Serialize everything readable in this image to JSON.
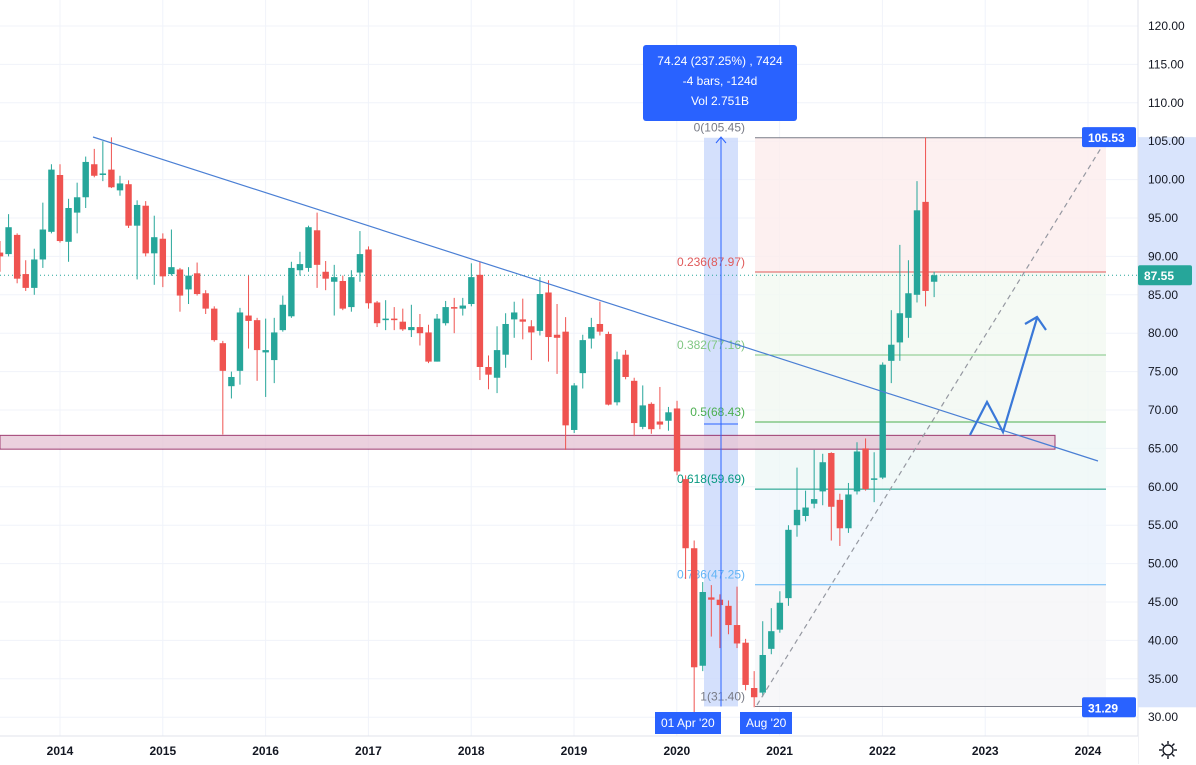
{
  "chart_data": {
    "type": "candlestick",
    "interval": "1M",
    "ylim": [
      28,
      122
    ],
    "y_ticks": [
      120,
      115,
      110,
      105,
      100,
      95,
      90,
      85,
      80,
      75,
      70,
      65,
      60,
      55,
      50,
      45,
      40,
      35,
      30
    ],
    "y_tick_labels": [
      "120.00",
      "115.00",
      "110.00",
      "105.00",
      "100.00",
      "95.00",
      "90.00",
      "85.00",
      "80.00",
      "75.00",
      "70.00",
      "65.00",
      "60.00",
      "55.00",
      "50.00",
      "45.00",
      "40.00",
      "35.00",
      "30.00"
    ],
    "x_ticks": [
      "2014",
      "2015",
      "2016",
      "2017",
      "2018",
      "2019",
      "2020",
      "2021",
      "2022",
      "2023",
      "2024"
    ],
    "first_month": "2013-06",
    "ohlc": [
      [
        90.5,
        92,
        88,
        90
      ],
      [
        90.3,
        95.5,
        90,
        93.8
      ],
      [
        92.8,
        93,
        86.5,
        87.1
      ],
      [
        87.7,
        89.5,
        85.5,
        85.9
      ],
      [
        85.9,
        91,
        85,
        89.6
      ],
      [
        89.6,
        97,
        88.5,
        93.5
      ],
      [
        93.2,
        102,
        93,
        101.3
      ],
      [
        100.6,
        102,
        91.8,
        92
      ],
      [
        91.9,
        97.5,
        89.3,
        96.3
      ],
      [
        95.7,
        99.6,
        93,
        97.7
      ],
      [
        97.7,
        103,
        96.3,
        102.3
      ],
      [
        102,
        104,
        100.3,
        100.5
      ],
      [
        100.6,
        105,
        99.8,
        100.8
      ],
      [
        101.3,
        105.5,
        98.9,
        99
      ],
      [
        98.6,
        100.5,
        97.9,
        99.5
      ],
      [
        99.4,
        99.9,
        93.7,
        94
      ],
      [
        94,
        97.3,
        87,
        96.7
      ],
      [
        96.6,
        97.2,
        90,
        90.4
      ],
      [
        90.4,
        95.3,
        86.3,
        92.5
      ],
      [
        92.3,
        93,
        86,
        87.4
      ],
      [
        87.7,
        93.5,
        87.5,
        88.6
      ],
      [
        88.3,
        88.5,
        82.8,
        84.9
      ],
      [
        85.7,
        88.6,
        83.8,
        87.5
      ],
      [
        87.8,
        89.2,
        84.9,
        85.1
      ],
      [
        85.2,
        85.6,
        82.5,
        83.2
      ],
      [
        83.2,
        83.5,
        78.9,
        79.1
      ],
      [
        78.7,
        79,
        66.8,
        75.1
      ],
      [
        73.1,
        75,
        71.5,
        74.3
      ],
      [
        75.1,
        83.3,
        73.3,
        82.7
      ],
      [
        82.3,
        87.5,
        78,
        81.6
      ],
      [
        81.7,
        82,
        73.8,
        77.8
      ],
      [
        77.5,
        81.9,
        71.7,
        77.8
      ],
      [
        76.5,
        82,
        73.5,
        80.1
      ],
      [
        80.4,
        84.9,
        80.2,
        83.7
      ],
      [
        82.2,
        89.3,
        82,
        88.5
      ],
      [
        88.2,
        90.6,
        87.5,
        89
      ],
      [
        88.5,
        94,
        88,
        93.8
      ],
      [
        93.4,
        95.7,
        85.9,
        88.9
      ],
      [
        88,
        89.4,
        85.6,
        87.1
      ],
      [
        86.7,
        88.9,
        82.3,
        87.3
      ],
      [
        86.8,
        87.5,
        83,
        83.2
      ],
      [
        83.4,
        88.2,
        82.8,
        87.3
      ],
      [
        87.9,
        93.3,
        86.7,
        90.3
      ],
      [
        90.9,
        91.3,
        83.2,
        83.9
      ],
      [
        84,
        84.2,
        80.8,
        81.3
      ],
      [
        81.7,
        84.3,
        80.4,
        81.9
      ],
      [
        81.9,
        83.4,
        80.4,
        81.7
      ],
      [
        81.5,
        83.2,
        80.3,
        80.5
      ],
      [
        80.4,
        83.7,
        79.5,
        80.8
      ],
      [
        80.8,
        82.5,
        78.4,
        80
      ],
      [
        80.1,
        81.1,
        76.1,
        76.3
      ],
      [
        76.3,
        82.5,
        76.3,
        81.9
      ],
      [
        81.3,
        84.2,
        81,
        83.4
      ],
      [
        83.4,
        84.6,
        80,
        83.2
      ],
      [
        83.2,
        84.6,
        82.3,
        83.6
      ],
      [
        83.8,
        89.1,
        83.5,
        87.3
      ],
      [
        87.6,
        89.3,
        73.9,
        75.6
      ],
      [
        75.6,
        77.1,
        72.7,
        74.6
      ],
      [
        74.2,
        80.9,
        72.2,
        77.8
      ],
      [
        77.2,
        82.6,
        75.5,
        81.2
      ],
      [
        81.8,
        84.1,
        79.4,
        82.7
      ],
      [
        81.8,
        84.5,
        79.2,
        81.5
      ],
      [
        80.9,
        81.7,
        76.5,
        80.1
      ],
      [
        80.3,
        87.3,
        79.7,
        85.1
      ],
      [
        85.3,
        86.9,
        76.3,
        79.5
      ],
      [
        79.8,
        83.8,
        74.7,
        79.4
      ],
      [
        80.2,
        82.1,
        64.8,
        68
      ],
      [
        67.4,
        73.5,
        67,
        73.2
      ],
      [
        74.8,
        79.8,
        72.8,
        79.1
      ],
      [
        79.3,
        82,
        78,
        80.8
      ],
      [
        81.2,
        84.1,
        79.7,
        80.2
      ],
      [
        79.9,
        80.2,
        70.6,
        70.7
      ],
      [
        71,
        77.6,
        70.6,
        76.6
      ],
      [
        77.2,
        77.8,
        74,
        74.3
      ],
      [
        73.8,
        74.2,
        66.6,
        68.3
      ],
      [
        67.8,
        73.2,
        67.5,
        70.6
      ],
      [
        70.8,
        71,
        66.9,
        67.5
      ],
      [
        68.5,
        73,
        67.5,
        68.1
      ],
      [
        68.6,
        70.4,
        67.3,
        69.7
      ],
      [
        70.2,
        71.2,
        61.5,
        62
      ],
      [
        61,
        61.5,
        48,
        52
      ],
      [
        52,
        53,
        30.4,
        36.5
      ],
      [
        36.7,
        47.6,
        36,
        46.3
      ],
      [
        45.6,
        47.2,
        40.5,
        45.3
      ],
      [
        45.3,
        46,
        39,
        44.6
      ],
      [
        44.5,
        45.2,
        40.8,
        42
      ],
      [
        42,
        47,
        39,
        39.6
      ],
      [
        39.7,
        40.2,
        33.5,
        34.2
      ],
      [
        33.8,
        36,
        31.3,
        32.6
      ],
      [
        33.2,
        42.5,
        32.7,
        38.1
      ],
      [
        38.9,
        44.2,
        38.2,
        41.2
      ],
      [
        41.4,
        46.4,
        41,
        44.9
      ],
      [
        45.5,
        55,
        44.5,
        54.4
      ],
      [
        55,
        62.5,
        53.5,
        57
      ],
      [
        56.2,
        59.5,
        55.5,
        57.3
      ],
      [
        57.8,
        64.8,
        57.2,
        58.4
      ],
      [
        59.4,
        64.3,
        57.6,
        63.2
      ],
      [
        64.4,
        64.5,
        53,
        57.4
      ],
      [
        58.3,
        59.1,
        52.3,
        54.6
      ],
      [
        54.6,
        60.5,
        54,
        59
      ],
      [
        59.4,
        65.8,
        59,
        64.6
      ],
      [
        65,
        66.3,
        59.5,
        59.7
      ],
      [
        60.9,
        64.5,
        58,
        61.1
      ],
      [
        61.2,
        76.2,
        61,
        75.9
      ],
      [
        76.4,
        83,
        73.5,
        78.5
      ],
      [
        78.8,
        91.5,
        76.4,
        82.6
      ],
      [
        82,
        89.5,
        79.4,
        85.2
      ],
      [
        85,
        99.8,
        84,
        96
      ],
      [
        97.1,
        105.5,
        83.5,
        85.5
      ],
      [
        86.7,
        88,
        84.7,
        87.55
      ]
    ],
    "last_price": "87.55",
    "range_high_label": "105.53",
    "range_low_label": "31.29",
    "fib_levels": [
      {
        "ratio": 0,
        "price": 105.45,
        "label": "0(105.45)",
        "color": "#787b86"
      },
      {
        "ratio": 0.236,
        "price": 87.97,
        "label": "0.236(87.97)",
        "color": "#e05a5a"
      },
      {
        "ratio": 0.382,
        "price": 77.16,
        "label": "0.382(77.16)",
        "color": "#81c784"
      },
      {
        "ratio": 0.5,
        "price": 68.43,
        "label": "0.5(68.43)",
        "color": "#4caf50"
      },
      {
        "ratio": 0.618,
        "price": 59.69,
        "label": "0.618(59.69)",
        "color": "#089981"
      },
      {
        "ratio": 0.786,
        "price": 47.25,
        "label": "0.786(47.25)",
        "color": "#64b5f6"
      },
      {
        "ratio": 1,
        "price": 31.4,
        "label": "1(31.40)",
        "color": "#787b86"
      }
    ],
    "support_zone": [
      64.9,
      66.7
    ],
    "colors": {
      "up": "#26a69a",
      "down": "#ef5350",
      "accent": "#2962ff",
      "trend": "#4a7fd4",
      "zone": "#880e4f"
    }
  },
  "measure_tooltip": {
    "line1": "74.24 (237.25%) , 7424",
    "line2": "-4 bars, -124d",
    "line3": "Vol 2.751B"
  },
  "date_labels": {
    "start": "01 Apr '20",
    "end": "Aug '20"
  },
  "settings_icon": "gear-icon"
}
